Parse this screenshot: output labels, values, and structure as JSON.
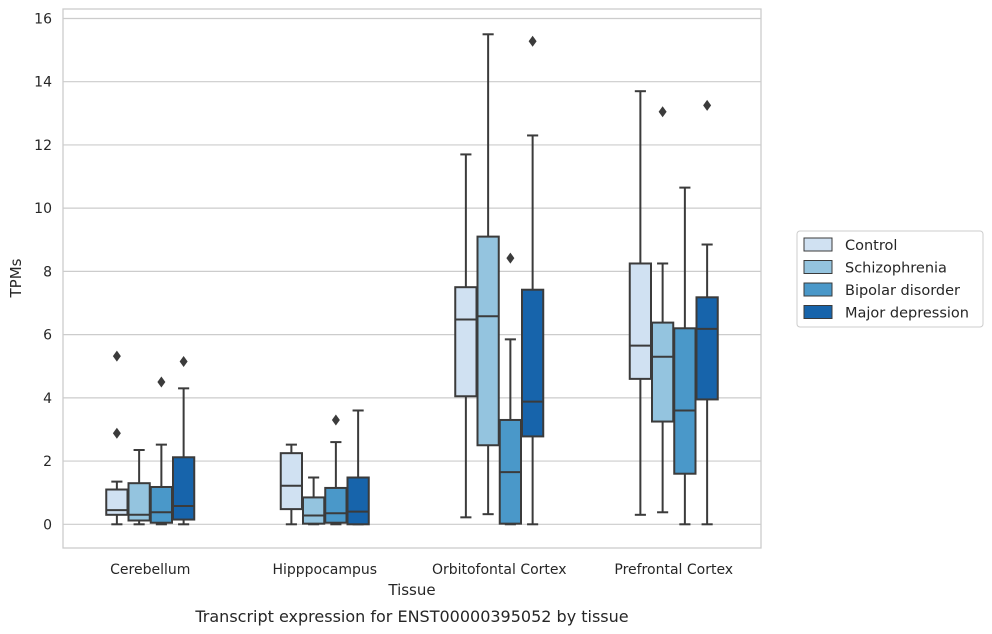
{
  "caption": "Transcript expression for ENST00000395052 by tissue",
  "chart_data": {
    "type": "boxplot",
    "xlabel": "Tissue",
    "ylabel": "TPMs",
    "ylim": [
      -0.75,
      16.3
    ],
    "yticks": [
      0,
      2,
      4,
      6,
      8,
      10,
      12,
      14,
      16
    ],
    "grid": "horizontal",
    "legend_position": "right",
    "categories": [
      "Cerebellum",
      "Hipppocampus",
      "Orbitofontal Cortex",
      "Prefrontal Cortex"
    ],
    "series": [
      {
        "name": "Control",
        "color": "#d0e1f2",
        "boxes": [
          {
            "whisker_low": 0.0,
            "q1": 0.3,
            "median": 0.45,
            "q3": 1.1,
            "whisker_high": 1.35,
            "outliers": [
              2.88,
              5.32
            ]
          },
          {
            "whisker_low": 0.0,
            "q1": 0.48,
            "median": 1.22,
            "q3": 2.25,
            "whisker_high": 2.52,
            "outliers": []
          },
          {
            "whisker_low": 0.22,
            "q1": 4.05,
            "median": 6.48,
            "q3": 7.5,
            "whisker_high": 11.7,
            "outliers": []
          },
          {
            "whisker_low": 0.3,
            "q1": 4.6,
            "median": 5.65,
            "q3": 8.25,
            "whisker_high": 13.7,
            "outliers": []
          }
        ]
      },
      {
        "name": "Schizophrenia",
        "color": "#94c4df",
        "boxes": [
          {
            "whisker_low": 0.0,
            "q1": 0.12,
            "median": 0.3,
            "q3": 1.3,
            "whisker_high": 2.35,
            "outliers": []
          },
          {
            "whisker_low": 0.0,
            "q1": 0.02,
            "median": 0.28,
            "q3": 0.85,
            "whisker_high": 1.48,
            "outliers": []
          },
          {
            "whisker_low": 0.32,
            "q1": 2.5,
            "median": 6.58,
            "q3": 9.1,
            "whisker_high": 15.5,
            "outliers": []
          },
          {
            "whisker_low": 0.38,
            "q1": 3.25,
            "median": 5.3,
            "q3": 6.38,
            "whisker_high": 8.25,
            "outliers": [
              13.05
            ]
          }
        ]
      },
      {
        "name": "Bipolar disorder",
        "color": "#4a98c9",
        "boxes": [
          {
            "whisker_low": 0.0,
            "q1": 0.05,
            "median": 0.38,
            "q3": 1.18,
            "whisker_high": 2.52,
            "outliers": [
              4.5
            ]
          },
          {
            "whisker_low": 0.0,
            "q1": 0.05,
            "median": 0.35,
            "q3": 1.15,
            "whisker_high": 2.6,
            "outliers": [
              3.3
            ]
          },
          {
            "whisker_low": 0.0,
            "q1": 0.02,
            "median": 1.65,
            "q3": 3.3,
            "whisker_high": 5.85,
            "outliers": [
              8.42
            ]
          },
          {
            "whisker_low": 0.0,
            "q1": 1.6,
            "median": 3.6,
            "q3": 6.2,
            "whisker_high": 10.65,
            "outliers": []
          }
        ]
      },
      {
        "name": "Major depression",
        "color": "#1764ab",
        "boxes": [
          {
            "whisker_low": 0.0,
            "q1": 0.15,
            "median": 0.58,
            "q3": 2.12,
            "whisker_high": 4.3,
            "outliers": [
              5.15
            ]
          },
          {
            "whisker_low": 0.0,
            "q1": 0.0,
            "median": 0.4,
            "q3": 1.48,
            "whisker_high": 3.6,
            "outliers": []
          },
          {
            "whisker_low": 0.0,
            "q1": 2.78,
            "median": 3.88,
            "q3": 7.42,
            "whisker_high": 12.3,
            "outliers": [
              15.28
            ]
          },
          {
            "whisker_low": 0.0,
            "q1": 3.95,
            "median": 6.18,
            "q3": 7.18,
            "whisker_high": 8.85,
            "outliers": [
              13.25
            ]
          }
        ]
      }
    ]
  }
}
